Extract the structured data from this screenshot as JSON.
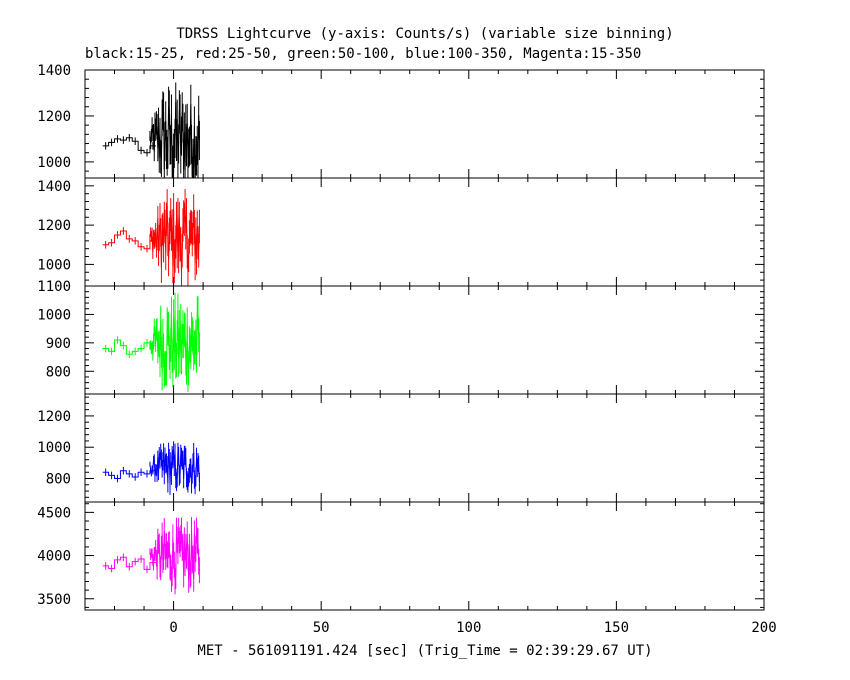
{
  "title": "TDRSS Lightcurve (y-axis: Counts/s) (variable size binning)",
  "subtitle": "black:15-25, red:25-50, green:50-100, blue:100-350, Magenta:15-350",
  "chart_data": {
    "type": "line",
    "xlabel": "MET - 561091191.424 [sec] (Trig_Time = 02:39:29.67 UT)",
    "xlim": [
      -30,
      200
    ],
    "xticks": [
      "0",
      "50",
      "100",
      "150",
      "200"
    ],
    "grid": false,
    "panels": [
      {
        "name": "black:15-25",
        "color": "#000000",
        "ylim": [
          930,
          1400
        ],
        "yticks": [
          "1000",
          "1200",
          "1400"
        ],
        "steady": {
          "x": [
            -23,
            -21,
            -19,
            -17,
            -15,
            -13,
            -11,
            -9,
            -7
          ],
          "y": [
            1070,
            1085,
            1100,
            1095,
            1105,
            1090,
            1050,
            1040,
            1070
          ]
        },
        "burst": {
          "start": -8,
          "end": 9,
          "base": 1100,
          "amp": 170
        }
      },
      {
        "name": "red:25-50",
        "color": "#ff0000",
        "ylim": [
          890,
          1440
        ],
        "yticks": [
          "1000",
          "1200",
          "1400"
        ],
        "steady": {
          "x": [
            -23,
            -21,
            -19,
            -17,
            -15,
            -13,
            -11,
            -9,
            -7
          ],
          "y": [
            1100,
            1110,
            1150,
            1170,
            1130,
            1120,
            1090,
            1080,
            1120
          ]
        },
        "burst": {
          "start": -8,
          "end": 9,
          "base": 1130,
          "amp": 170
        }
      },
      {
        "name": "green:50-100",
        "color": "#00ff00",
        "ylim": [
          720,
          1100
        ],
        "yticks": [
          "800",
          "900",
          "1000",
          "1100"
        ],
        "steady": {
          "x": [
            -23,
            -21,
            -19,
            -17,
            -15,
            -13,
            -11,
            -9,
            -7
          ],
          "y": [
            880,
            870,
            910,
            890,
            860,
            870,
            880,
            900,
            890
          ]
        },
        "burst": {
          "start": -8,
          "end": 9,
          "base": 900,
          "amp": 120
        }
      },
      {
        "name": "blue:100-350",
        "color": "#0000ff",
        "ylim": [
          650,
          1340
        ],
        "yticks": [
          "800",
          "1000",
          "1200"
        ],
        "steady": {
          "x": [
            -23,
            -21,
            -19,
            -17,
            -15,
            -13,
            -11,
            -9,
            -7
          ],
          "y": [
            840,
            820,
            800,
            850,
            830,
            810,
            840,
            830,
            850
          ]
        },
        "burst": {
          "start": -8,
          "end": 9,
          "base": 870,
          "amp": 120
        }
      },
      {
        "name": "Magenta:15-350",
        "color": "#ff00ff",
        "ylim": [
          3370,
          4620
        ],
        "yticks": [
          "3500",
          "4000",
          "4500"
        ],
        "steady": {
          "x": [
            -23,
            -21,
            -19,
            -17,
            -15,
            -13,
            -11,
            -9,
            -7
          ],
          "y": [
            3880,
            3850,
            3950,
            3980,
            3870,
            3930,
            3960,
            3840,
            3920
          ]
        },
        "burst": {
          "start": -8,
          "end": 9,
          "base": 4000,
          "amp": 300
        }
      }
    ]
  }
}
